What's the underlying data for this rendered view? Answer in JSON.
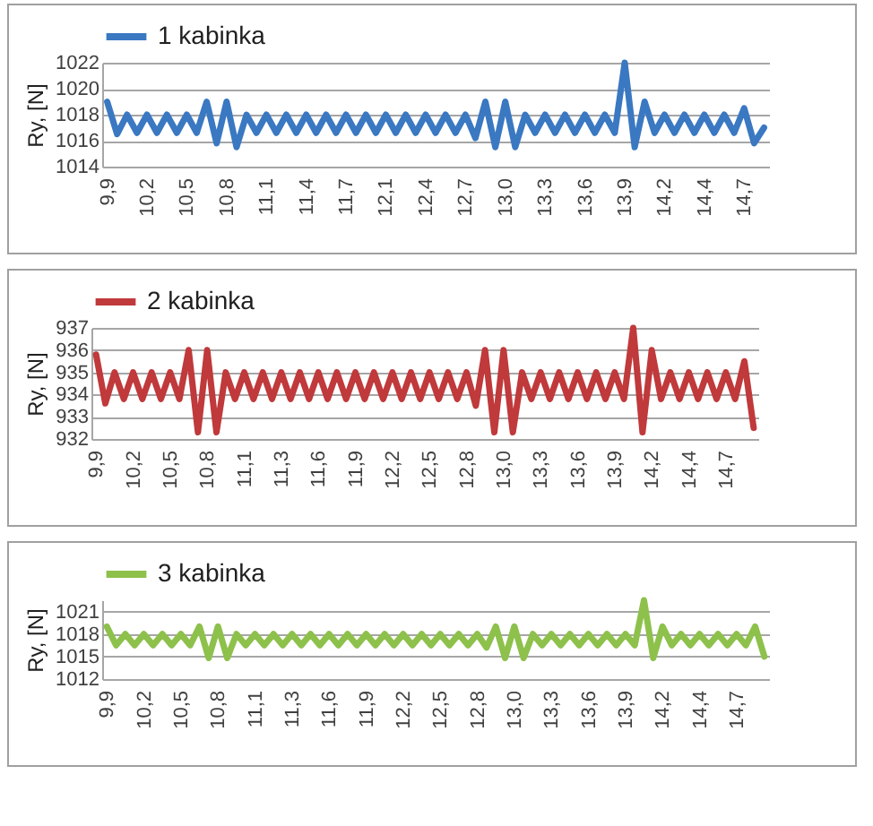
{
  "chart_data": [
    {
      "type": "line",
      "ylabel": "Ry, [N]",
      "ylim": [
        1014,
        1022
      ],
      "yticks": [
        1014,
        1016,
        1018,
        1020,
        1022
      ],
      "grid": "y",
      "legend": "top",
      "line_style": "solid",
      "marker": "none",
      "categories": [
        "9,9",
        null,
        null,
        null,
        "10,2",
        null,
        null,
        null,
        "10,5",
        null,
        null,
        null,
        "10,8",
        null,
        null,
        null,
        "11,1",
        null,
        null,
        null,
        "11,4",
        null,
        null,
        null,
        "11,7",
        null,
        null,
        null,
        "12,1",
        null,
        null,
        null,
        "12,4",
        null,
        null,
        null,
        "12,7",
        null,
        null,
        null,
        "13,0",
        null,
        null,
        null,
        "13,3",
        null,
        null,
        null,
        "13,6",
        null,
        null,
        null,
        "13,9",
        null,
        null,
        null,
        "14,2",
        null,
        null,
        null,
        "14,4",
        null,
        null,
        null,
        "14,7",
        null,
        null
      ],
      "series": [
        {
          "name": "1 kabinka",
          "color": "#3a78c2",
          "values": [
            1019,
            1016.5,
            1018,
            1016.6,
            1018,
            1016.6,
            1018,
            1016.6,
            1018,
            1016.6,
            1019,
            1015.8,
            1019,
            1015.5,
            1018,
            1016.6,
            1018,
            1016.6,
            1018,
            1016.6,
            1018,
            1016.6,
            1018,
            1016.6,
            1018,
            1016.6,
            1018,
            1016.6,
            1018,
            1016.6,
            1018,
            1016.6,
            1018,
            1016.6,
            1018,
            1016.6,
            1018,
            1016.2,
            1019,
            1015.5,
            1019,
            1015.5,
            1018,
            1016.6,
            1018,
            1016.6,
            1018,
            1016.6,
            1018,
            1016.6,
            1018,
            1016.6,
            1022,
            1015.5,
            1019,
            1016.6,
            1018,
            1016.6,
            1018,
            1016.6,
            1018,
            1016.6,
            1018,
            1016.6,
            1018.5,
            1015.8,
            1017
          ]
        }
      ]
    },
    {
      "type": "line",
      "ylabel": "Ry, [N]",
      "ylim": [
        932,
        937
      ],
      "yticks": [
        932,
        933,
        934,
        935,
        936,
        937
      ],
      "grid": "y",
      "legend": "top",
      "line_style": "solid",
      "marker": "none",
      "categories": [
        "9,9",
        null,
        null,
        null,
        "10,2",
        null,
        null,
        null,
        "10,5",
        null,
        null,
        null,
        "10,8",
        null,
        null,
        null,
        "11,1",
        null,
        null,
        null,
        "11,3",
        null,
        null,
        null,
        "11,6",
        null,
        null,
        null,
        "11,9",
        null,
        null,
        null,
        "12,2",
        null,
        null,
        null,
        "12,5",
        null,
        null,
        null,
        "12,8",
        null,
        null,
        null,
        "13,0",
        null,
        null,
        null,
        "13,3",
        null,
        null,
        null,
        "13,6",
        null,
        null,
        null,
        "13,9",
        null,
        null,
        null,
        "14,2",
        null,
        null,
        null,
        "14,4",
        null,
        null,
        null,
        "14,7",
        null,
        null,
        null
      ],
      "series": [
        {
          "name": "2 kabinka",
          "color": "#c0393b",
          "values": [
            935.8,
            933.6,
            935,
            933.8,
            935,
            933.8,
            935,
            933.8,
            935,
            933.8,
            936,
            932.3,
            936,
            932.3,
            935,
            933.8,
            935,
            933.8,
            935,
            933.8,
            935,
            933.8,
            935,
            933.8,
            935,
            933.8,
            935,
            933.8,
            935,
            933.8,
            935,
            933.8,
            935,
            933.8,
            935,
            933.8,
            935,
            933.8,
            935,
            933.8,
            935,
            933.5,
            936,
            932.3,
            936,
            932.3,
            935,
            933.8,
            935,
            933.8,
            935,
            933.8,
            935,
            933.8,
            935,
            933.8,
            935,
            933.8,
            937,
            932.3,
            936,
            933.8,
            935,
            933.8,
            935,
            933.8,
            935,
            933.8,
            935,
            933.8,
            935.5,
            932.5
          ]
        }
      ]
    },
    {
      "type": "line",
      "ylabel": "Ry, [N]",
      "ylim": [
        1012,
        1022.5
      ],
      "yticks": [
        1012,
        1015,
        1018,
        1021
      ],
      "grid": "y",
      "legend": "top",
      "line_style": "solid",
      "marker": "none",
      "categories": [
        "9,9",
        null,
        null,
        null,
        "10,2",
        null,
        null,
        null,
        "10,5",
        null,
        null,
        null,
        "10,8",
        null,
        null,
        null,
        "11,1",
        null,
        null,
        null,
        "11,3",
        null,
        null,
        null,
        "11,6",
        null,
        null,
        null,
        "11,9",
        null,
        null,
        null,
        "12,2",
        null,
        null,
        null,
        "12,5",
        null,
        null,
        null,
        "12,8",
        null,
        null,
        null,
        "13,0",
        null,
        null,
        null,
        "13,3",
        null,
        null,
        null,
        "13,6",
        null,
        null,
        null,
        "13,9",
        null,
        null,
        null,
        "14,2",
        null,
        null,
        null,
        "14,4",
        null,
        null,
        null,
        "14,7",
        null,
        null,
        null
      ],
      "series": [
        {
          "name": "3 kabinka",
          "color": "#8dc14b",
          "values": [
            1019,
            1016.5,
            1018,
            1016.5,
            1018,
            1016.5,
            1018,
            1016.5,
            1018,
            1016.5,
            1019,
            1014.8,
            1019,
            1014.8,
            1018,
            1016.5,
            1018,
            1016.5,
            1018,
            1016.5,
            1018,
            1016.5,
            1018,
            1016.5,
            1018,
            1016.5,
            1018,
            1016.5,
            1018,
            1016.5,
            1018,
            1016.5,
            1018,
            1016.5,
            1018,
            1016.5,
            1018,
            1016.5,
            1018,
            1016.5,
            1018,
            1016.2,
            1019,
            1014.8,
            1019,
            1014.8,
            1018,
            1016.5,
            1018,
            1016.5,
            1018,
            1016.5,
            1018,
            1016.5,
            1018,
            1016.5,
            1018,
            1016.5,
            1022.5,
            1014.8,
            1019,
            1016.5,
            1018,
            1016.5,
            1018,
            1016.5,
            1018,
            1016.5,
            1018,
            1016.5,
            1019,
            1015
          ]
        }
      ]
    }
  ]
}
